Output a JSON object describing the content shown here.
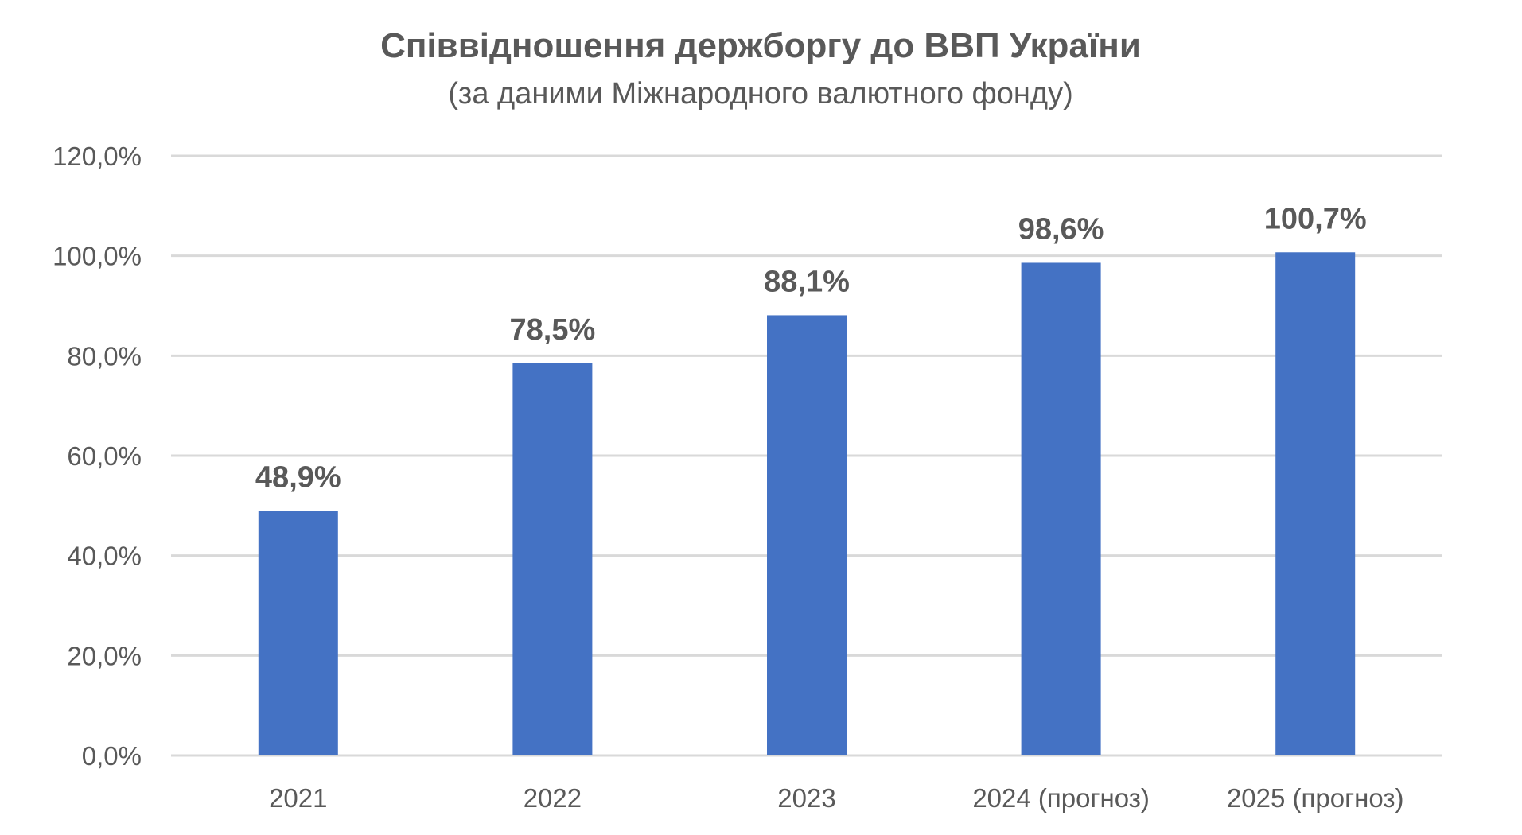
{
  "chart_data": {
    "type": "bar",
    "title": "Співвідношення держборгу до ВВП України",
    "subtitle": "(за даними Міжнародного валютного фонду)",
    "categories": [
      "2021",
      "2022",
      "2023",
      "2024 (прогноз)",
      "2025 (прогноз)"
    ],
    "values": [
      48.9,
      78.5,
      88.1,
      98.6,
      100.7
    ],
    "data_labels": [
      "48,9%",
      "78,5%",
      "88,1%",
      "98,6%",
      "100,7%"
    ],
    "ylim": [
      0,
      120
    ],
    "yticks": [
      0,
      20,
      40,
      60,
      80,
      100,
      120
    ],
    "ytick_labels": [
      "0,0%",
      "20,0%",
      "40,0%",
      "60,0%",
      "80,0%",
      "100,0%",
      "120,0%"
    ],
    "xlabel": "",
    "ylabel": "",
    "grid": true,
    "legend": "none",
    "colors": {
      "bar": "#4472C4",
      "grid": "#D9D9D9",
      "text": "#595959"
    }
  }
}
